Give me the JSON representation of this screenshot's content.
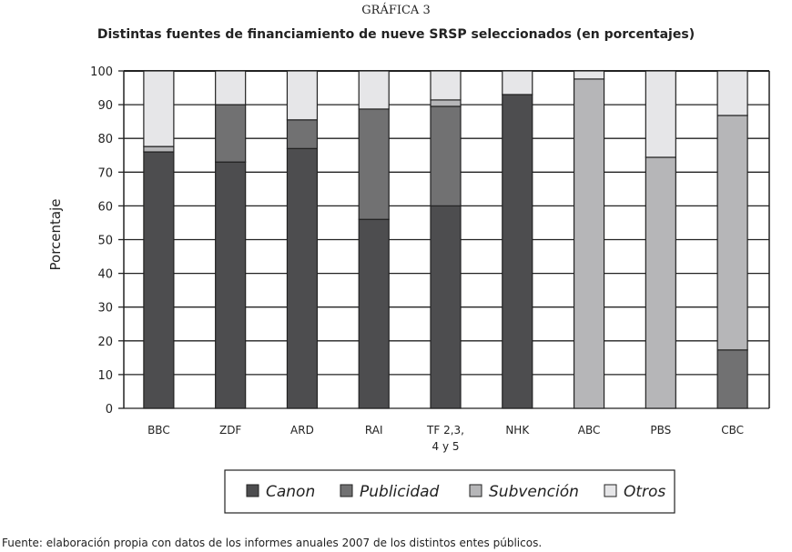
{
  "chart_data": {
    "type": "bar",
    "stacked": true,
    "supertitle": "GRÁFICA 3",
    "title": "Distintas fuentes de financiamiento de nueve SRSP seleccionados (en porcentajes)",
    "xlabel": "",
    "ylabel": "Porcentaje",
    "ylim": [
      0,
      100
    ],
    "yticks": [
      0,
      10,
      20,
      30,
      40,
      50,
      60,
      70,
      80,
      90,
      100
    ],
    "grid": true,
    "legend_position": "bottom",
    "categories": [
      [
        "BBC"
      ],
      [
        "ZDF"
      ],
      [
        "ARD"
      ],
      [
        "RAI"
      ],
      [
        "TF 2,3,",
        "4 y 5"
      ],
      [
        "NHK"
      ],
      [
        "ABC"
      ],
      [
        "PBS"
      ],
      [
        "CBC"
      ]
    ],
    "series": [
      {
        "name": "Canon",
        "color": "#4d4d4f",
        "values": [
          76,
          73,
          77,
          56,
          60,
          93,
          0,
          0,
          0
        ]
      },
      {
        "name": "Publicidad",
        "color": "#717172",
        "values": [
          0,
          17,
          8.5,
          32.7,
          29.5,
          0,
          0,
          0,
          17.3
        ]
      },
      {
        "name": "Subvención",
        "color": "#b6b6b8",
        "values": [
          1.6,
          0,
          0,
          0,
          1.9,
          0,
          97.6,
          74.4,
          69.5
        ]
      },
      {
        "name": "Otros",
        "color": "#e6e6e8",
        "values": [
          22.4,
          10,
          14.5,
          11.3,
          8.6,
          7,
          2.4,
          25.6,
          13.2
        ]
      }
    ],
    "source": "Fuente: elaboración propia con datos de los informes anuales 2007 de los distintos entes públicos."
  }
}
